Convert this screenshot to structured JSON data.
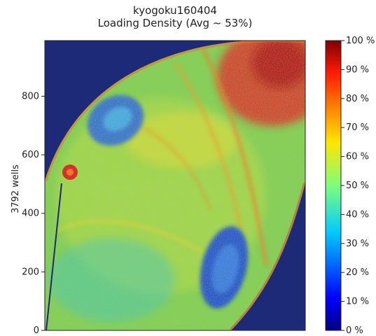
{
  "chart_data": {
    "type": "heatmap",
    "title": "kyogoku160404",
    "subtitle": "Loading Density (Avg ~ 53%)",
    "xlabel": "",
    "ylabel": "3792 wells",
    "y_ticks": [
      "0",
      "200",
      "400",
      "600",
      "800"
    ],
    "y_tick_values": [
      0,
      200,
      400,
      600,
      800
    ],
    "ylim": [
      0,
      990
    ],
    "colorbar": {
      "ticks": [
        "100 %",
        "90 %",
        "80 %",
        "70 %",
        "60 %",
        "50 %",
        "40 %",
        "30 %",
        "20 %",
        "10 %",
        "0 %"
      ],
      "range": [
        0,
        100
      ],
      "colormap": "jet"
    },
    "average_loading_percent": 53,
    "background_value_percent": 0,
    "regions": [
      {
        "label": "upper-left low-density blob",
        "value_percent": 22
      },
      {
        "label": "lower-right low-density blob",
        "value_percent": 20
      },
      {
        "label": "bright spot near left edge",
        "value_percent": 90
      },
      {
        "label": "upper-right high-density area",
        "value_percent": 88
      }
    ]
  }
}
